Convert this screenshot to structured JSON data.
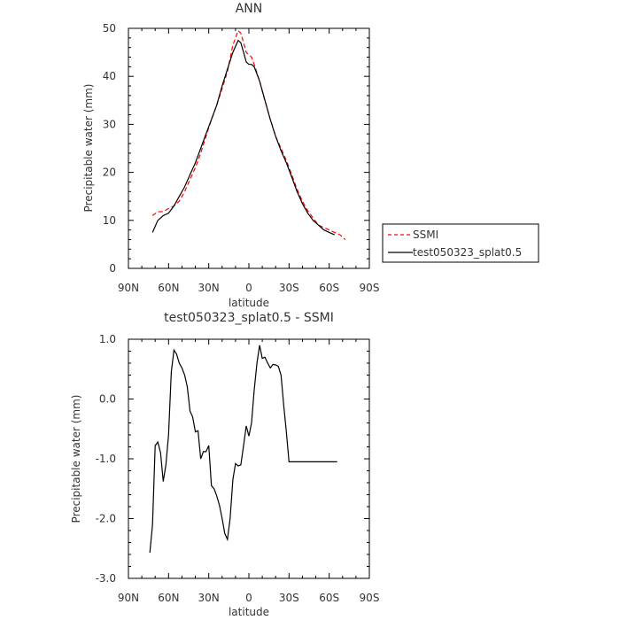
{
  "chart_data": [
    {
      "type": "line",
      "title": "ANN",
      "xlabel": "latitude",
      "ylabel": "Precipitable water (mm)",
      "xlim": [
        90,
        -90
      ],
      "ylim": [
        0,
        50
      ],
      "x_ticks": [
        90,
        60,
        30,
        0,
        -30,
        -60,
        -90
      ],
      "x_tick_labels": [
        "90N",
        "60N",
        "30N",
        "0",
        "30S",
        "60S",
        "90S"
      ],
      "y_ticks": [
        0,
        10,
        20,
        30,
        40,
        50
      ],
      "y_tick_labels": [
        "0",
        "10",
        "20",
        "30",
        "40",
        "50"
      ],
      "legend_position": "right",
      "series": [
        {
          "name": "SSMI",
          "color": "#ff0000",
          "dash": "dashed",
          "x": [
            72,
            68,
            64,
            60,
            56,
            52,
            48,
            44,
            40,
            36,
            32,
            28,
            24,
            20,
            16,
            12,
            8,
            6,
            4,
            2,
            0,
            -2,
            -4,
            -8,
            -12,
            -16,
            -20,
            -24,
            -28,
            -32,
            -36,
            -40,
            -44,
            -48,
            -52,
            -56,
            -60,
            -64,
            -68,
            -72
          ],
          "values": [
            11.0,
            11.8,
            11.8,
            12.5,
            13.0,
            14.0,
            16.0,
            18.5,
            21.0,
            24.0,
            27.5,
            31.0,
            34.0,
            37.5,
            41.0,
            46.5,
            49.5,
            49.0,
            47.0,
            45.0,
            44.5,
            44.0,
            42.5,
            39.0,
            35.0,
            31.0,
            27.5,
            25.0,
            22.5,
            19.5,
            16.5,
            14.0,
            12.0,
            10.5,
            9.0,
            8.5,
            8.0,
            7.5,
            7.0,
            6.0
          ]
        },
        {
          "name": "test050323_splat0.5",
          "color": "#000000",
          "dash": "solid",
          "x": [
            72,
            68,
            64,
            60,
            56,
            52,
            48,
            44,
            40,
            36,
            32,
            28,
            24,
            20,
            16,
            12,
            8,
            6,
            4,
            2,
            0,
            -2,
            -4,
            -8,
            -12,
            -16,
            -20,
            -24,
            -28,
            -32,
            -36,
            -40,
            -44,
            -48,
            -52,
            -56,
            -60,
            -64
          ],
          "values": [
            7.5,
            10.0,
            11.0,
            11.5,
            13.0,
            15.0,
            17.0,
            19.5,
            22.0,
            25.0,
            28.0,
            31.0,
            34.0,
            38.0,
            41.5,
            45.0,
            47.5,
            47.0,
            45.0,
            43.0,
            42.5,
            42.5,
            42.0,
            39.0,
            35.0,
            31.0,
            27.5,
            24.5,
            22.0,
            19.0,
            16.0,
            13.5,
            11.5,
            10.0,
            9.0,
            8.0,
            7.5,
            7.0
          ]
        }
      ]
    },
    {
      "type": "line",
      "title": "test050323_splat0.5 - SSMI",
      "xlabel": "latitude",
      "ylabel": "Precipitable water (mm)",
      "xlim": [
        90,
        -90
      ],
      "ylim": [
        -3.0,
        1.0
      ],
      "x_ticks": [
        90,
        60,
        30,
        0,
        -30,
        -60,
        -90
      ],
      "x_tick_labels": [
        "90N",
        "60N",
        "30N",
        "0",
        "30S",
        "60S",
        "90S"
      ],
      "y_ticks": [
        1.0,
        0.0,
        -1.0,
        -2.0,
        -3.0
      ],
      "y_tick_labels": [
        "1.0",
        "0.0",
        "-1.0",
        "-2.0",
        "-3.0"
      ],
      "series": [
        {
          "color": "#000000",
          "dash": "solid",
          "x": [
            74,
            72,
            70,
            68,
            66,
            64,
            62,
            60,
            58,
            56,
            54,
            52,
            50,
            48,
            46,
            44,
            42,
            40,
            38,
            36,
            34,
            32,
            30,
            28,
            26,
            24,
            22,
            20,
            18,
            16,
            14,
            12,
            10,
            8,
            6,
            4,
            2,
            0,
            -2,
            -4,
            -6,
            -8,
            -10,
            -12,
            -14,
            -16,
            -18,
            -20,
            -22,
            -24,
            -26,
            -28,
            -30,
            -32,
            -34,
            -36,
            -38,
            -40,
            -42,
            -44,
            -46,
            -48,
            -50,
            -52,
            -54,
            -56,
            -58,
            -60,
            -62,
            -64,
            -66
          ],
          "values": [
            -2.57,
            -2.1,
            -0.78,
            -0.72,
            -0.9,
            -1.38,
            -1.1,
            -0.6,
            0.45,
            0.82,
            0.75,
            0.6,
            0.52,
            0.4,
            0.2,
            -0.2,
            -0.3,
            -0.55,
            -0.53,
            -1.0,
            -0.88,
            -0.88,
            -0.78,
            -1.45,
            -1.5,
            -1.62,
            -1.78,
            -2.0,
            -2.25,
            -2.35,
            -2.0,
            -1.35,
            -1.08,
            -1.12,
            -1.1,
            -0.78,
            -0.45,
            -0.62,
            -0.4,
            0.15,
            0.6,
            0.9,
            0.68,
            0.7,
            0.6,
            0.52,
            0.58,
            0.57,
            0.55,
            0.4,
            -0.1,
            -0.55,
            -1.05,
            -1.05,
            -1.05,
            -1.05,
            -1.05,
            -1.05,
            -1.05,
            -1.05,
            -1.05,
            -1.05,
            -1.05,
            -1.05,
            -1.05,
            -1.05,
            -1.05,
            -1.05,
            -1.05,
            -1.05,
            -1.05
          ]
        }
      ]
    }
  ]
}
